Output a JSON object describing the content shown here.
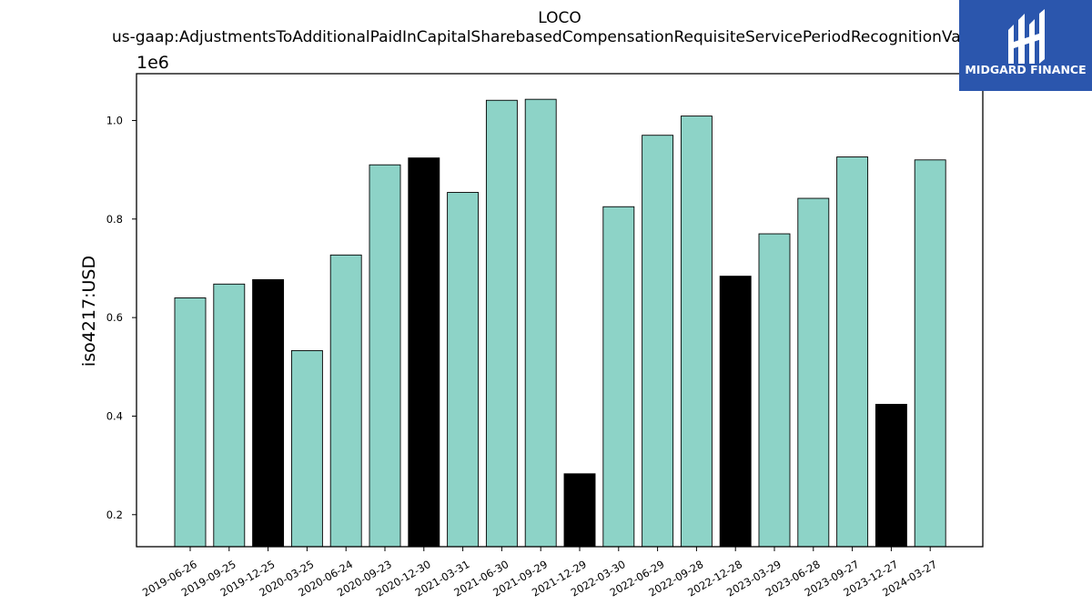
{
  "chart_data": {
    "type": "bar",
    "title_line1": "LOCO",
    "title_line2": "us-gaap:AdjustmentsToAdditionalPaidInCapitalSharebasedCompensationRequisiteServicePeriodRecognitionValue",
    "ylabel": "iso4217:USD",
    "xlabel": "",
    "y_offset_label": "1e6",
    "ylim": [
      0.135,
      1.095
    ],
    "yticks": [
      0.2,
      0.4,
      0.6,
      0.8,
      1.0
    ],
    "ytick_labels": [
      "0.2",
      "0.4",
      "0.6",
      "0.8",
      "1.0"
    ],
    "categories": [
      "2019-06-26",
      "2019-09-25",
      "2019-12-25",
      "2020-03-25",
      "2020-06-24",
      "2020-09-23",
      "2020-12-30",
      "2021-03-31",
      "2021-06-30",
      "2021-09-29",
      "2021-12-29",
      "2022-03-30",
      "2022-06-29",
      "2022-09-28",
      "2022-12-28",
      "2023-03-29",
      "2023-06-28",
      "2023-09-27",
      "2023-12-27",
      "2024-03-27"
    ],
    "values": [
      0.64,
      0.668,
      0.677,
      0.533,
      0.727,
      0.91,
      0.924,
      0.854,
      1.041,
      1.043,
      0.283,
      0.825,
      0.97,
      1.009,
      0.684,
      0.77,
      0.842,
      0.926,
      0.424,
      0.92
    ],
    "highlighted": [
      false,
      false,
      true,
      false,
      false,
      false,
      true,
      false,
      false,
      false,
      true,
      false,
      false,
      false,
      true,
      false,
      false,
      false,
      true,
      false
    ],
    "colors": {
      "normal": "#8dd3c7",
      "highlight": "#000000",
      "edge": "#000000"
    },
    "grid": false,
    "legend": "none"
  },
  "logo": {
    "text": "MIDGARD FINANCE",
    "background": "#2b56ad",
    "icon_name": "midgard-logo-icon"
  }
}
